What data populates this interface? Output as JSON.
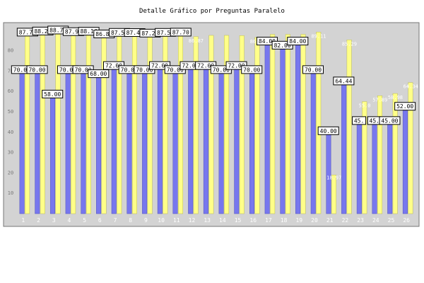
{
  "chart_data": {
    "type": "bar",
    "title": "Detalle Gráfico por Preguntas Paralelo",
    "xlabel": "",
    "ylabel": "",
    "categories": [
      "1",
      "2",
      "3",
      "4",
      "5",
      "6",
      "7",
      "8",
      "9",
      "10",
      "11",
      "12",
      "13",
      "14",
      "15",
      "16",
      "17",
      "18",
      "19",
      "20",
      "21",
      "22",
      "23",
      "24",
      "25",
      "26"
    ],
    "ylim": [
      0,
      92
    ],
    "yticks": [
      10,
      20,
      30,
      40,
      50,
      60,
      70,
      80
    ],
    "grid": false,
    "legend": "none",
    "series": [
      {
        "color": "#7777ee",
        "values": [
          70.0,
          70.0,
          58.0,
          70.0,
          70.0,
          68.0,
          72.0,
          70.0,
          70.0,
          72.0,
          70.0,
          72.0,
          72.0,
          70.0,
          72.0,
          70.0,
          84.0,
          82.0,
          84.0,
          70.0,
          40.0,
          64.44,
          45.0,
          45.0,
          45.0,
          52.0
        ],
        "labels": [
          "70.00",
          "70.00",
          "58.00",
          "70.00",
          "70.00",
          "68.00",
          "72.00",
          "70.00",
          "70.00",
          "72.00",
          "70.00",
          "72.00",
          "72.00",
          "70.00",
          "72.00",
          "70.00",
          "84.00",
          "82.00",
          "84.00",
          "70.00",
          "40.00",
          "64.44",
          "45.",
          "45.",
          "45.00",
          "52.00"
        ]
      },
      {
        "color": "#ffff88",
        "values": [
          87.71,
          88.24,
          88.73,
          87.95,
          88.14,
          86.81,
          87.58,
          87.49,
          87.22,
          87.58,
          87.7,
          86.87,
          87.5,
          87.5,
          87.4,
          86.49,
          88.0,
          88.0,
          88.0,
          89.11,
          18.97,
          85.29,
          55.0,
          57.89,
          58.98,
          64.34
        ],
        "labels": [
          "87.71",
          "88.24",
          "88.73",
          "87.95",
          "88.14",
          "86.81",
          "87.58",
          "87.49",
          "87.22",
          "87.58",
          "87.70",
          "86.87",
          "",
          "",
          "",
          "86.49",
          "",
          "",
          "",
          "89.11",
          "18.97",
          "85.29",
          "55.0",
          "57.89",
          "58.98",
          "64.34"
        ],
        "label_boxed": [
          true,
          true,
          true,
          true,
          true,
          true,
          true,
          true,
          true,
          true,
          true,
          false,
          false,
          false,
          false,
          false,
          false,
          false,
          false,
          false,
          false,
          false,
          false,
          false,
          false,
          false
        ]
      }
    ]
  }
}
